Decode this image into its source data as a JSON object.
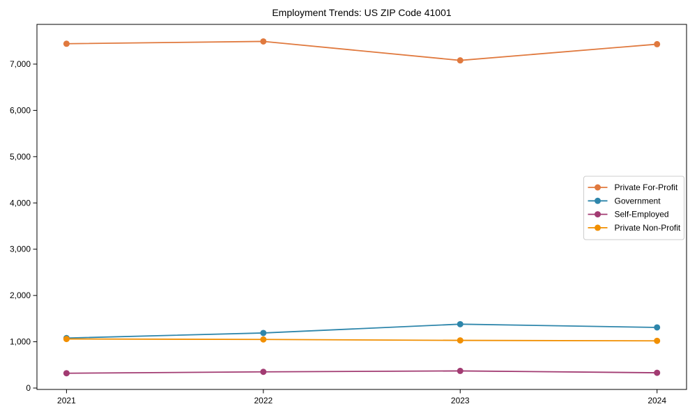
{
  "title": "Employment Trends: US ZIP Code 41001",
  "chart_data": {
    "type": "line",
    "title": "Employment Trends: US ZIP Code 41001",
    "xlabel": "",
    "ylabel": "",
    "categories": [
      "2021",
      "2022",
      "2023",
      "2024"
    ],
    "series": [
      {
        "name": "Private For-Profit",
        "color": "#e0793e",
        "values": [
          7440,
          7490,
          7080,
          7430
        ]
      },
      {
        "name": "Government",
        "color": "#2e86ab",
        "values": [
          1080,
          1190,
          1380,
          1310
        ]
      },
      {
        "name": "Self-Employed",
        "color": "#a23b72",
        "values": [
          320,
          350,
          370,
          330
        ]
      },
      {
        "name": "Private Non-Profit",
        "color": "#f18f01",
        "values": [
          1060,
          1050,
          1030,
          1020
        ]
      }
    ],
    "ylim": [
      0,
      7860
    ],
    "y_ticks": [
      0,
      1000,
      2000,
      3000,
      4000,
      5000,
      6000,
      7000
    ],
    "y_tick_labels": [
      "0",
      "1,000",
      "2,000",
      "3,000",
      "4,000",
      "5,000",
      "6,000",
      "7,000"
    ],
    "grid": false,
    "legend_position": "center-right",
    "marker": "circle",
    "frame_color": "#000000",
    "legend_border_color": "#cccccc"
  }
}
